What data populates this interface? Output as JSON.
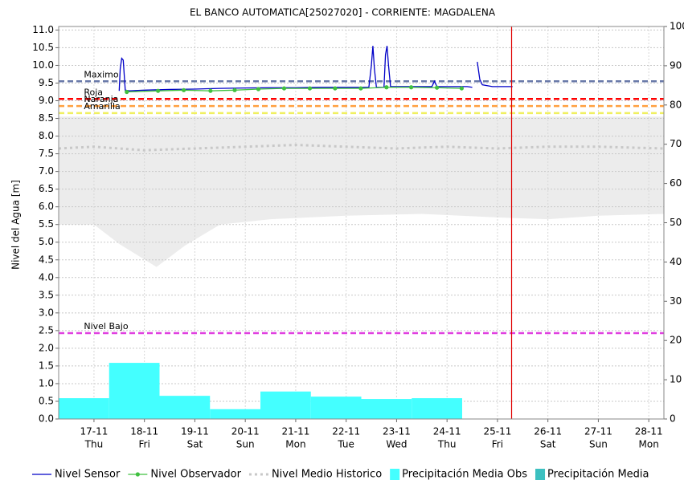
{
  "chart_data": {
    "type": "line",
    "title": "EL BANCO AUTOMATICA[25027020] - CORRIENTE: MAGDALENA",
    "ylabel": "Nivel del Agua [m]",
    "ylim": [
      0,
      11.1
    ],
    "yticks": [
      {
        "value": 0,
        "label": "0.0"
      },
      0.5,
      {
        "value": 1,
        "label": "1.0"
      },
      1.5,
      {
        "value": 2,
        "label": "2.0"
      },
      2.5,
      {
        "value": 3,
        "label": "3.0"
      },
      3.5,
      {
        "value": 4,
        "label": "4.0"
      },
      4.5,
      {
        "value": 5,
        "label": "5.0"
      },
      5.5,
      {
        "value": 6,
        "label": "6.0"
      },
      6.5,
      {
        "value": 7,
        "label": "7.0"
      },
      7.5,
      {
        "value": 8,
        "label": "8.0"
      },
      8.5,
      {
        "value": 9,
        "label": "9.0"
      },
      9.5,
      {
        "value": 10,
        "label": "10.0"
      },
      10.5,
      {
        "value": 11,
        "label": "11.0"
      }
    ],
    "y2lim": [
      0,
      100
    ],
    "y2ticks": [
      0,
      10,
      20,
      30,
      40,
      50,
      60,
      70,
      80,
      90,
      100
    ],
    "xlim": [
      16.3,
      28.3
    ],
    "xticks": [
      {
        "value": 17,
        "label": "17-11"
      },
      {
        "value": 18,
        "label": "18-11"
      },
      {
        "value": 19,
        "label": "19-11"
      },
      {
        "value": 20,
        "label": "20-11"
      },
      {
        "value": 21,
        "label": "21-11"
      },
      {
        "value": 22,
        "label": "22-11"
      },
      {
        "value": 23,
        "label": "23-11"
      },
      {
        "value": 24,
        "label": "24-11"
      },
      {
        "value": 25,
        "label": "25-11"
      },
      {
        "value": 26,
        "label": "26-11"
      },
      {
        "value": 27,
        "label": "27-11"
      },
      {
        "value": 28,
        "label": "28-11"
      }
    ],
    "xtick_days": [
      "Thu",
      "Fri",
      "Sat",
      "Sun",
      "Mon",
      "Tue",
      "Wed",
      "Thu",
      "Fri",
      "Sat",
      "Sun",
      "Mon"
    ],
    "grid": true,
    "band": {
      "color": "#ececec",
      "x": [
        16.3,
        17.0,
        17.5,
        18.24,
        18.8,
        19.5,
        20.5,
        22.0,
        23.5,
        25.0,
        26.0,
        27.0,
        28.3
      ],
      "low": [
        5.5,
        5.5,
        4.95,
        4.3,
        4.9,
        5.5,
        5.65,
        5.75,
        5.8,
        5.7,
        5.65,
        5.75,
        5.8
      ],
      "high": [
        8.55,
        8.55,
        8.55,
        8.55,
        8.55,
        8.55,
        8.55,
        8.55,
        8.55,
        8.55,
        8.55,
        8.55,
        8.55
      ]
    },
    "thresholds": [
      {
        "label": "Maximo",
        "value": 9.55,
        "color": "#6878a8"
      },
      {
        "label": "Roja",
        "value": 9.05,
        "color": "#ff0000"
      },
      {
        "label": "Naranja",
        "value": 8.85,
        "color": "#ffa040"
      },
      {
        "label": "Amarilla",
        "value": 8.65,
        "color": "#f0f060"
      },
      {
        "label": "Nivel Bajo",
        "value": 2.43,
        "color": "#e040e0"
      }
    ],
    "vline": {
      "x": 25.28,
      "color": "#e00000"
    },
    "series": [
      {
        "name": "Precipitación Media Obs",
        "type": "histogram",
        "axis": "y2",
        "color": "#44ffff",
        "bins": [
          16.3,
          17.3,
          18.3,
          19.3,
          20.3,
          21.3,
          22.3,
          23.3,
          24.3
        ],
        "values": [
          5.3,
          14.3,
          5.9,
          2.5,
          7.0,
          5.7,
          5.1,
          5.3
        ]
      },
      {
        "name": "Precipitación Media",
        "type": "histogram",
        "axis": "y2",
        "color": "#3cc0c0",
        "values": []
      },
      {
        "name": "Nivel Medio Historico",
        "type": "line",
        "dash": "dotted",
        "color": "#c8c8c8",
        "x": [
          16.3,
          17.0,
          18.0,
          19.0,
          20.0,
          21.0,
          22.0,
          23.0,
          24.0,
          25.0,
          26.0,
          27.0,
          28.3
        ],
        "values": [
          7.65,
          7.7,
          7.6,
          7.65,
          7.7,
          7.75,
          7.7,
          7.65,
          7.7,
          7.65,
          7.7,
          7.7,
          7.65
        ]
      },
      {
        "name": "Nivel Sensor",
        "type": "line",
        "color": "#0000c8",
        "x": [
          17.5,
          17.52,
          17.55,
          17.58,
          17.62,
          17.7,
          18.0,
          18.5,
          19.0,
          19.5,
          20.0,
          20.5,
          21.0,
          21.5,
          22.0,
          22.45,
          22.5,
          22.53,
          22.56,
          22.6,
          22.75,
          22.78,
          22.81,
          22.84,
          22.88,
          23.2,
          23.7,
          23.75,
          23.8,
          24.4,
          24.5,
          24.55,
          24.6,
          24.65,
          24.7,
          24.9,
          25.3
        ],
        "values": [
          9.28,
          9.9,
          10.2,
          10.15,
          9.3,
          9.28,
          9.3,
          9.32,
          9.33,
          9.35,
          9.36,
          9.37,
          9.37,
          9.38,
          9.38,
          9.38,
          10.0,
          10.55,
          9.9,
          9.38,
          9.38,
          10.3,
          10.55,
          10.0,
          9.4,
          9.4,
          9.4,
          9.55,
          9.4,
          9.4,
          9.38,
          null,
          10.1,
          9.6,
          9.45,
          9.4,
          9.4
        ]
      },
      {
        "name": "Nivel Observador",
        "type": "line",
        "marker": "circle",
        "color": "#40c040",
        "x": [
          17.65,
          18.27,
          18.78,
          19.31,
          19.79,
          20.26,
          20.77,
          21.28,
          21.78,
          22.29,
          22.8,
          23.29,
          23.8,
          24.29
        ],
        "values": [
          9.25,
          9.28,
          9.3,
          9.28,
          9.3,
          9.33,
          9.35,
          9.35,
          9.35,
          9.35,
          9.38,
          9.38,
          9.37,
          9.35
        ]
      }
    ]
  }
}
